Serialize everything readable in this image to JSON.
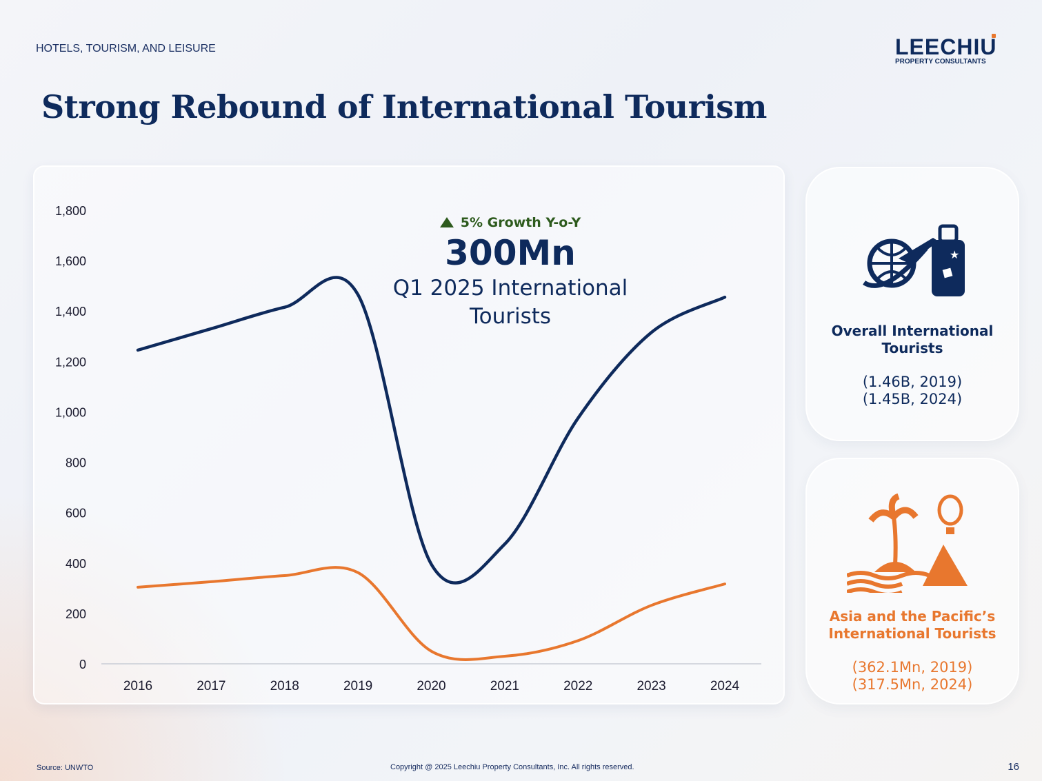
{
  "header": {
    "sector": "HOTELS, TOURISM, AND LEISURE",
    "logo_main": "LEECHIU",
    "logo_sub": "PROPERTY CONSULTANTS",
    "title": "Strong Rebound of International Tourism"
  },
  "callout": {
    "growth": "5% Growth Y-o-Y",
    "value": "300Mn",
    "label_line1": "Q1 2025 International",
    "label_line2": "Tourists",
    "growth_color": "#2d5a1d"
  },
  "cards": [
    {
      "icon": "globe-plane-luggage-icon",
      "title_line1": "Overall International",
      "title_line2": "Tourists",
      "value_line1": "(1.46B, 2019)",
      "value_line2": "(1.45B, 2024)",
      "color": "#0e2a5c"
    },
    {
      "icon": "island-palm-balloon-icon",
      "title_line1": "Asia and the Pacific’s",
      "title_line2": "International Tourists",
      "value_line1": "(362.1Mn, 2019)",
      "value_line2": "(317.5Mn, 2024)",
      "color": "#e8772e"
    }
  ],
  "footer": {
    "source": "Source: UNWTO",
    "copyright": "Copyright @ 2025 Leechiu Property Consultants, Inc. All rights reserved.",
    "page": "16"
  },
  "chart_data": {
    "type": "line",
    "title": "",
    "xlabel": "",
    "ylabel": "",
    "x": [
      2016,
      2017,
      2018,
      2019,
      2020,
      2021,
      2022,
      2023,
      2024
    ],
    "ylim": [
      0,
      1800
    ],
    "yticks": [
      0,
      200,
      400,
      600,
      800,
      1000,
      1200,
      1400,
      1600,
      1800
    ],
    "ytick_labels": [
      "0",
      "200",
      "400",
      "600",
      "800",
      "1,000",
      "1,200",
      "1,400",
      "1,600",
      "1,800"
    ],
    "grid": false,
    "series": [
      {
        "name": "Overall International Tourists (Mn)",
        "color": "#0e2a5c",
        "values": [
          1245,
          1330,
          1415,
          1465,
          395,
          475,
          975,
          1315,
          1455
        ]
      },
      {
        "name": "Asia and the Pacific International Tourists (Mn)",
        "color": "#e8772e",
        "values": [
          304,
          326,
          350,
          362,
          50,
          30,
          92,
          232,
          317
        ]
      }
    ]
  }
}
